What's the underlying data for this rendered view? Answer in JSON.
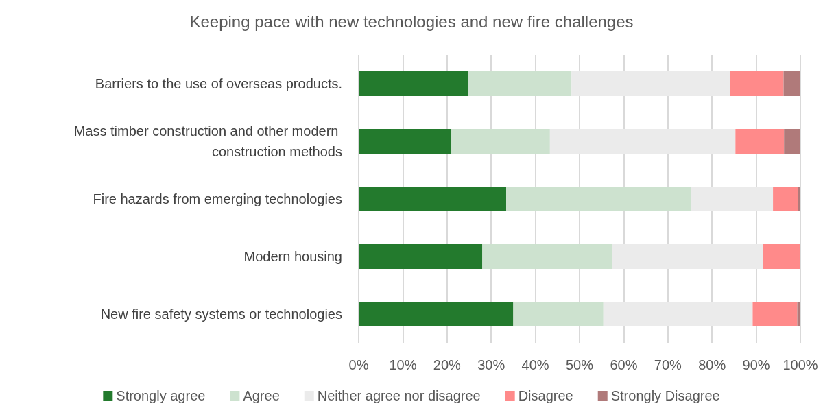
{
  "chart_data": {
    "type": "bar",
    "title": "Keeping pace with new technologies and new fire challenges",
    "orientation": "horizontal",
    "stacked": true,
    "categories": [
      "Barriers to the use of overseas products.",
      "Mass timber construction and other modern construction methods",
      "Fire hazards from emerging technologies",
      "Modern housing",
      "New fire safety systems or technologies"
    ],
    "series": [
      {
        "name": "Strongly agree",
        "color": "#237a2d",
        "values": [
          24.8,
          21.0,
          33.4,
          28.0,
          35.0
        ]
      },
      {
        "name": "Agree",
        "color": "#cde2cf",
        "values": [
          23.4,
          22.3,
          41.8,
          29.4,
          20.4
        ]
      },
      {
        "name": "Neither agree nor disagree",
        "color": "#ebebeb",
        "values": [
          35.9,
          42.0,
          18.6,
          34.1,
          33.8
        ]
      },
      {
        "name": "Disagree",
        "color": "#ff8a8a",
        "values": [
          12.1,
          11.0,
          5.7,
          8.5,
          10.1
        ]
      },
      {
        "name": "Strongly Disagree",
        "color": "#b07a7a",
        "values": [
          3.8,
          3.7,
          0.5,
          0,
          0.7
        ]
      }
    ],
    "xlim": [
      0,
      100
    ],
    "xticks": [
      {
        "value": 0,
        "label": "0%"
      },
      {
        "value": 10,
        "label": "10%"
      },
      {
        "value": 20,
        "label": "20%"
      },
      {
        "value": 30,
        "label": "30%"
      },
      {
        "value": 40,
        "label": "40%"
      },
      {
        "value": 50,
        "label": "50%"
      },
      {
        "value": 60,
        "label": "60%"
      },
      {
        "value": 70,
        "label": "70%"
      },
      {
        "value": 80,
        "label": "80%"
      },
      {
        "value": 90,
        "label": "90%"
      },
      {
        "value": 100,
        "label": "100%"
      }
    ],
    "grid": "x",
    "legend": "bottom"
  }
}
